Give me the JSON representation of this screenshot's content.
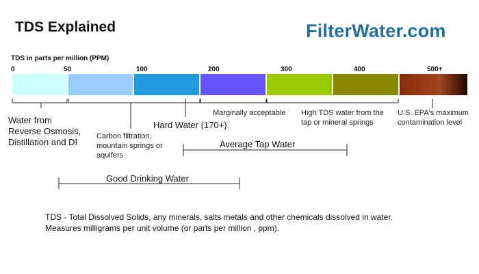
{
  "title": "TDS Explained",
  "brand": "FilterWater.com",
  "scale": {
    "axis_label": "TDS in parts per million (PPM)",
    "ticks": [
      "0",
      "50",
      "100",
      "200",
      "300",
      "400",
      "500+"
    ],
    "segments": [
      {
        "range": "0-50",
        "color": "#ccffff"
      },
      {
        "range": "50-100",
        "color": "#99ccff"
      },
      {
        "range": "100-200",
        "color": "#2299dd"
      },
      {
        "range": "200-300",
        "color": "#6655ff"
      },
      {
        "range": "300-400",
        "color": "#99cc00"
      },
      {
        "range": "400-500",
        "color": "#888800"
      },
      {
        "range": "500+",
        "color": "#8b2a0a"
      }
    ]
  },
  "labels": {
    "ro_di": [
      "Water from",
      "Reverse Osmosis,",
      "Distillation and DI"
    ],
    "carbon": [
      "Carbon filtration,",
      "mountain springs or",
      "aquifers"
    ],
    "hard_water": "Hard Water (170+)",
    "marginal": "Marginally acceptable",
    "high_tds": [
      "High TDS water from the",
      "tap or mineral springs"
    ],
    "epa": [
      "U.S. EPA's maximum",
      "contamination level"
    ],
    "average_tap": "Average Tap Water",
    "good_drinking": "Good Drinking Water"
  },
  "footnote": [
    "TDS - Total Dissolved Solids, any minerals, salts metals and other chemicals dissolved in water.",
    "Measures milligrams per unit volume (or parts per million , ppm)."
  ]
}
